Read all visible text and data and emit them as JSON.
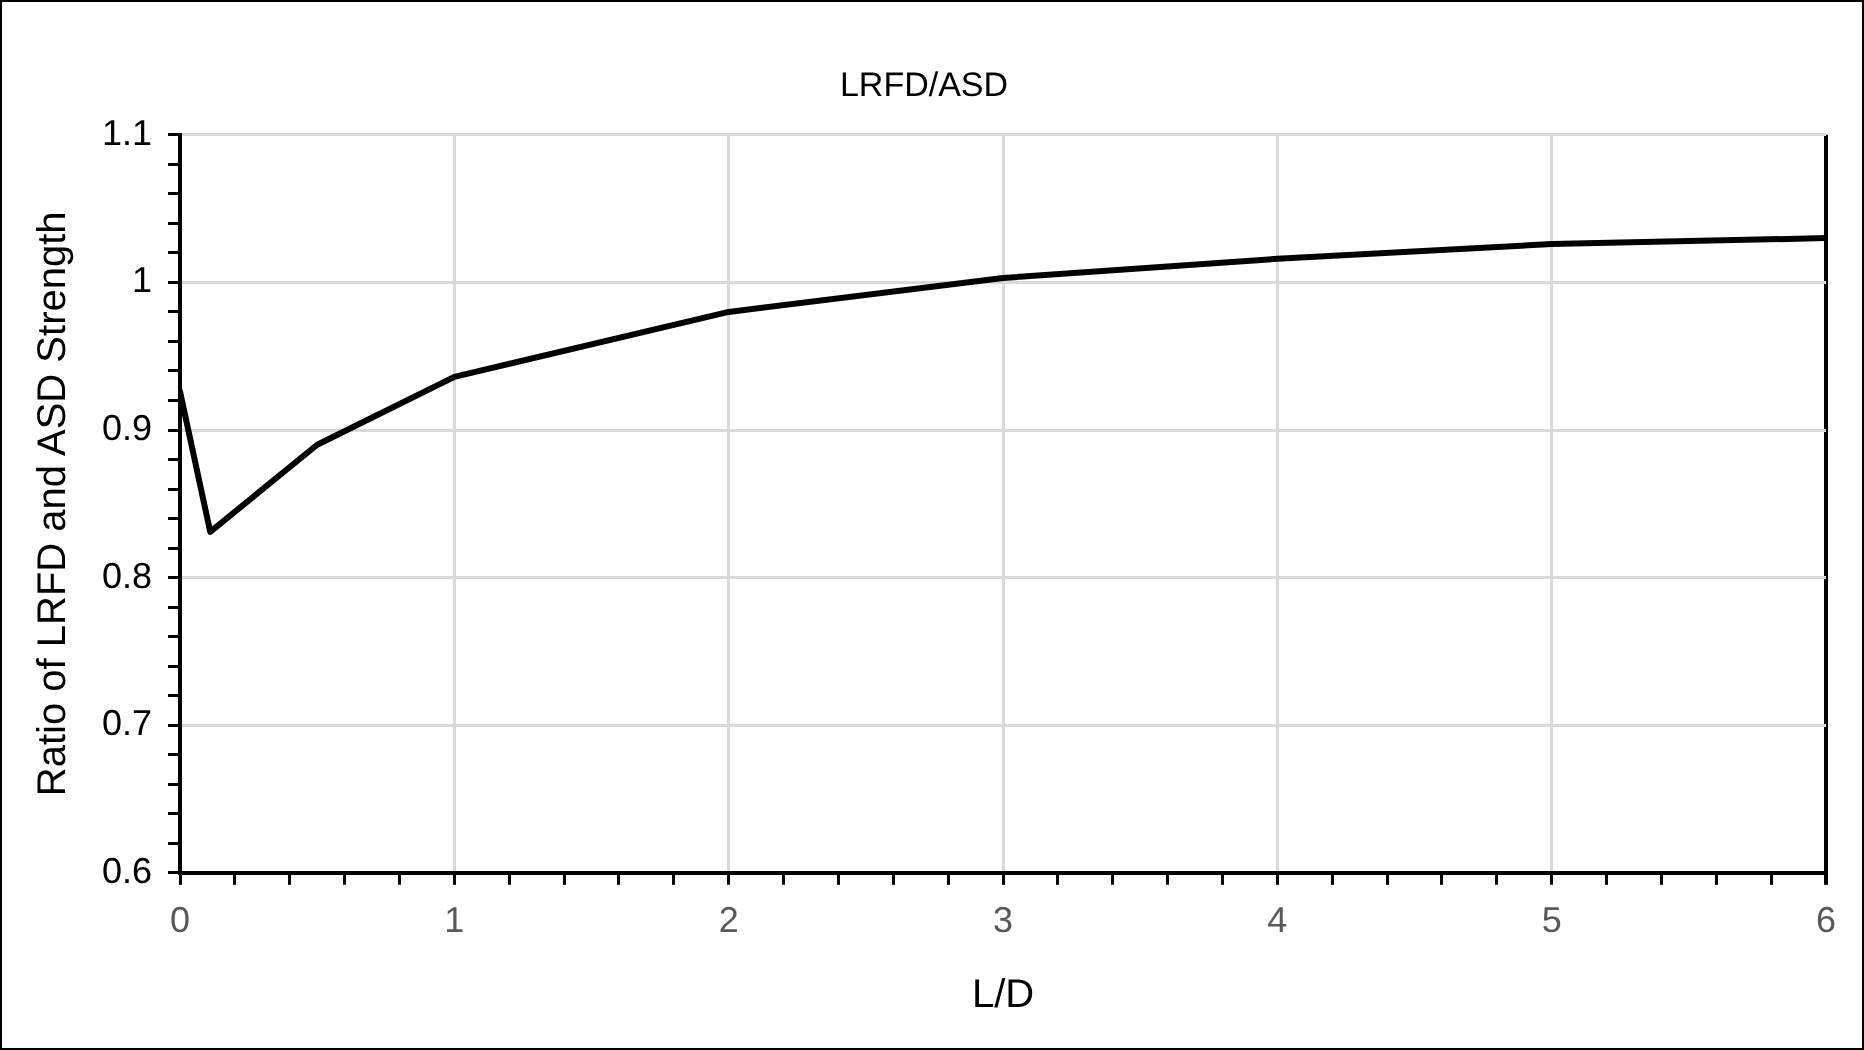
{
  "chart_data": {
    "type": "line",
    "title": "LRFD/ASD",
    "xlabel": "L/D",
    "ylabel": "Ratio of LRFD and ASD Strength",
    "x": [
      0,
      0.11,
      0.5,
      1,
      2,
      3,
      4,
      5,
      6
    ],
    "series": [
      {
        "color": "#000000",
        "values": [
          0.926,
          0.831,
          0.89,
          0.936,
          0.98,
          1.003,
          1.016,
          1.026,
          1.03
        ]
      }
    ],
    "xlim": [
      0,
      6
    ],
    "xticks": [
      0,
      {
        "value": 0.2,
        "label": null
      },
      {
        "value": 0.4,
        "label": null
      },
      {
        "value": 0.6,
        "label": null
      },
      {
        "value": 0.8,
        "label": null
      },
      1,
      {
        "value": 1.2,
        "label": null
      },
      {
        "value": 1.4,
        "label": null
      },
      {
        "value": 1.6,
        "label": null
      },
      {
        "value": 1.8,
        "label": null
      },
      2,
      {
        "value": 2.2,
        "label": null
      },
      {
        "value": 2.4,
        "label": null
      },
      {
        "value": 2.6,
        "label": null
      },
      {
        "value": 2.8,
        "label": null
      },
      3,
      {
        "value": 3.2,
        "label": null
      },
      {
        "value": 3.4,
        "label": null
      },
      {
        "value": 3.6,
        "label": null
      },
      {
        "value": 3.8,
        "label": null
      },
      4,
      {
        "value": 4.2,
        "label": null
      },
      {
        "value": 4.4,
        "label": null
      },
      {
        "value": 4.6,
        "label": null
      },
      {
        "value": 4.8,
        "label": null
      },
      5,
      {
        "value": 5.2,
        "label": null
      },
      {
        "value": 5.4,
        "label": null
      },
      {
        "value": 5.6,
        "label": null
      },
      {
        "value": 5.8,
        "label": null
      },
      6
    ],
    "ylim": [
      0.6,
      1.1
    ],
    "yticks": [
      0.6,
      {
        "value": 0.62,
        "label": null
      },
      {
        "value": 0.64,
        "label": null
      },
      {
        "value": 0.66,
        "label": null
      },
      {
        "value": 0.68,
        "label": null
      },
      0.7,
      {
        "value": 0.72,
        "label": null
      },
      {
        "value": 0.74,
        "label": null
      },
      {
        "value": 0.76,
        "label": null
      },
      {
        "value": 0.78,
        "label": null
      },
      0.8,
      {
        "value": 0.82,
        "label": null
      },
      {
        "value": 0.84,
        "label": null
      },
      {
        "value": 0.86,
        "label": null
      },
      {
        "value": 0.88,
        "label": null
      },
      0.9,
      {
        "value": 0.92,
        "label": null
      },
      {
        "value": 0.94,
        "label": null
      },
      {
        "value": 0.96,
        "label": null
      },
      {
        "value": 0.98,
        "label": null
      },
      1,
      {
        "value": 1.02,
        "label": null
      },
      {
        "value": 1.04,
        "label": null
      },
      {
        "value": 1.06,
        "label": null
      },
      {
        "value": 1.08,
        "label": null
      },
      1.1
    ],
    "grid": true,
    "marker": "none",
    "line_style": "solid"
  }
}
